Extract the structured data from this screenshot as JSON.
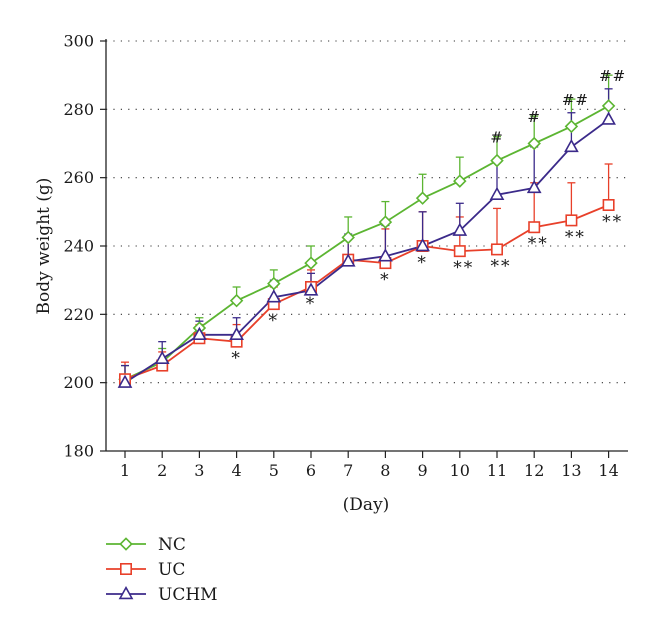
{
  "chart_data": {
    "type": "line",
    "title": "",
    "xlabel": "(Day)",
    "ylabel": "Body weight (g)",
    "x": [
      1,
      2,
      3,
      4,
      5,
      6,
      7,
      8,
      9,
      10,
      11,
      12,
      13,
      14
    ],
    "x_tick_labels": [
      "1",
      "2",
      "3",
      "4",
      "5",
      "6",
      "7",
      "8",
      "9",
      "10",
      "11",
      "12",
      "13",
      "14"
    ],
    "ylim": [
      180,
      300
    ],
    "y_ticks": [
      180,
      200,
      220,
      240,
      260,
      280,
      300
    ],
    "y_tick_labels": [
      "180",
      "200",
      "220",
      "240",
      "260",
      "280",
      "300"
    ],
    "grid": "horizontal dotted",
    "legend_placement": "bottom-left",
    "series": [
      {
        "name": "NC",
        "color": "#5cb532",
        "marker": "diamond",
        "values": [
          201,
          206,
          216,
          224,
          229,
          235,
          242.5,
          247,
          254,
          259,
          265,
          270,
          275,
          281
        ],
        "error_up": [
          4,
          4,
          3,
          4,
          4,
          5,
          6,
          6,
          7,
          7,
          7,
          8,
          8,
          9
        ],
        "annotations": [
          "",
          "",
          "",
          "",
          "",
          "",
          "",
          "",
          "",
          "",
          "#",
          "#",
          "##",
          "##"
        ]
      },
      {
        "name": "UC",
        "color": "#e8402a",
        "marker": "square",
        "values": [
          201,
          205,
          213,
          212,
          223,
          228,
          236,
          235,
          240,
          238.5,
          239,
          245.5,
          247.5,
          252
        ],
        "error_up": [
          5,
          4,
          4,
          5,
          5,
          5,
          7,
          10,
          10,
          10,
          12,
          13,
          11,
          12
        ],
        "annotations": [
          "",
          "",
          "",
          "*",
          "*",
          "*",
          "",
          "*",
          "*",
          "**",
          "**",
          "**",
          "**",
          "**"
        ]
      },
      {
        "name": "UCHM",
        "color": "#3b2a8a",
        "marker": "triangle",
        "values": [
          200,
          207,
          214,
          214,
          225,
          227,
          235.5,
          237,
          240,
          244.5,
          255,
          257,
          269,
          277
        ],
        "error_up": [
          5,
          5,
          4,
          5,
          5,
          5,
          8,
          9,
          10,
          8,
          10,
          12,
          10,
          9
        ],
        "annotations": [
          "",
          "",
          "",
          "",
          "",
          "",
          "",
          "",
          "",
          "",
          "",
          "",
          "",
          ""
        ]
      }
    ]
  }
}
